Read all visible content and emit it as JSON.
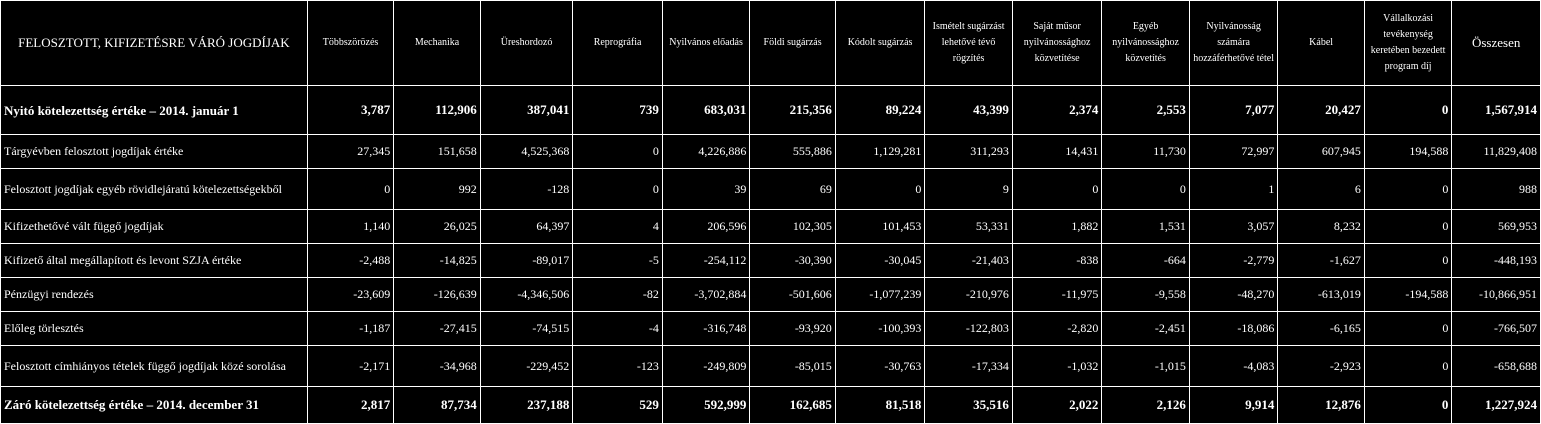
{
  "header": {
    "label": "FELOSZTOTT, KIFIZETÉSRE VÁRÓ JOGDÍJAK",
    "columns": [
      "Többszörözés",
      "Mechanika",
      "Üreshordozó",
      "Reprográfia",
      "Nyilvános előadás",
      "Földi sugárzás",
      "Kódolt sugárzás",
      "Ismételt sugárzást lehetővé tévő rögzítés",
      "Saját műsor nyilvánossághoz közvetítése",
      "Egyéb nyilvánossághoz közvetítés",
      "Nyilvánosság számára hozzáférhetővé tétel",
      "Kábel",
      "Vállalkozási tevékenység keretében bezedett program díj",
      "Összesen"
    ]
  },
  "rows": [
    {
      "label": "Nyitó kötelezettség értéke – 2014. január 1",
      "values": [
        "3,787",
        "112,906",
        "387,041",
        "739",
        "683,031",
        "215,356",
        "89,224",
        "43,399",
        "2,374",
        "2,553",
        "7,077",
        "20,427",
        "0",
        "1,567,914"
      ]
    },
    {
      "label": "Tárgyévben felosztott jogdíjak értéke",
      "values": [
        "27,345",
        "151,658",
        "4,525,368",
        "0",
        "4,226,886",
        "555,886",
        "1,129,281",
        "311,293",
        "14,431",
        "11,730",
        "72,997",
        "607,945",
        "194,588",
        "11,829,408"
      ]
    },
    {
      "label": "Felosztott jogdíjak egyéb rövidlejáratú kötelezettségekből",
      "values": [
        "0",
        "992",
        "-128",
        "0",
        "39",
        "69",
        "0",
        "9",
        "0",
        "0",
        "1",
        "6",
        "0",
        "988"
      ]
    },
    {
      "label": "Kifizethetővé vált függő jogdíjak",
      "values": [
        "1,140",
        "26,025",
        "64,397",
        "4",
        "206,596",
        "102,305",
        "101,453",
        "53,331",
        "1,882",
        "1,531",
        "3,057",
        "8,232",
        "0",
        "569,953"
      ]
    },
    {
      "label": "Kifizető által megállapított és levont SZJA értéke",
      "values": [
        "-2,488",
        "-14,825",
        "-89,017",
        "-5",
        "-254,112",
        "-30,390",
        "-30,045",
        "-21,403",
        "-838",
        "-664",
        "-2,779",
        "-1,627",
        "0",
        "-448,193"
      ]
    },
    {
      "label": "Pénzügyi rendezés",
      "values": [
        "-23,609",
        "-126,639",
        "-4,346,506",
        "-82",
        "-3,702,884",
        "-501,606",
        "-1,077,239",
        "-210,976",
        "-11,975",
        "-9,558",
        "-48,270",
        "-613,019",
        "-194,588",
        "-10,866,951"
      ]
    },
    {
      "label": "Előleg törlesztés",
      "values": [
        "-1,187",
        "-27,415",
        "-74,515",
        "-4",
        "-316,748",
        "-93,920",
        "-100,393",
        "-122,803",
        "-2,820",
        "-2,451",
        "-18,086",
        "-6,165",
        "0",
        "-766,507"
      ]
    },
    {
      "label": "Felosztott címhiányos tételek függő jogdíjak közé sorolása",
      "values": [
        "-2,171",
        "-34,968",
        "-229,452",
        "-123",
        "-249,809",
        "-85,015",
        "-30,763",
        "-17,334",
        "-1,032",
        "-1,015",
        "-4,083",
        "-2,923",
        "0",
        "-658,688"
      ]
    },
    {
      "label": "Záró kötelezettség értéke – 2014. december 31",
      "values": [
        "2,817",
        "87,734",
        "237,188",
        "529",
        "592,999",
        "162,685",
        "81,518",
        "35,516",
        "2,022",
        "2,126",
        "9,914",
        "12,876",
        "0",
        "1,227,924"
      ]
    }
  ]
}
